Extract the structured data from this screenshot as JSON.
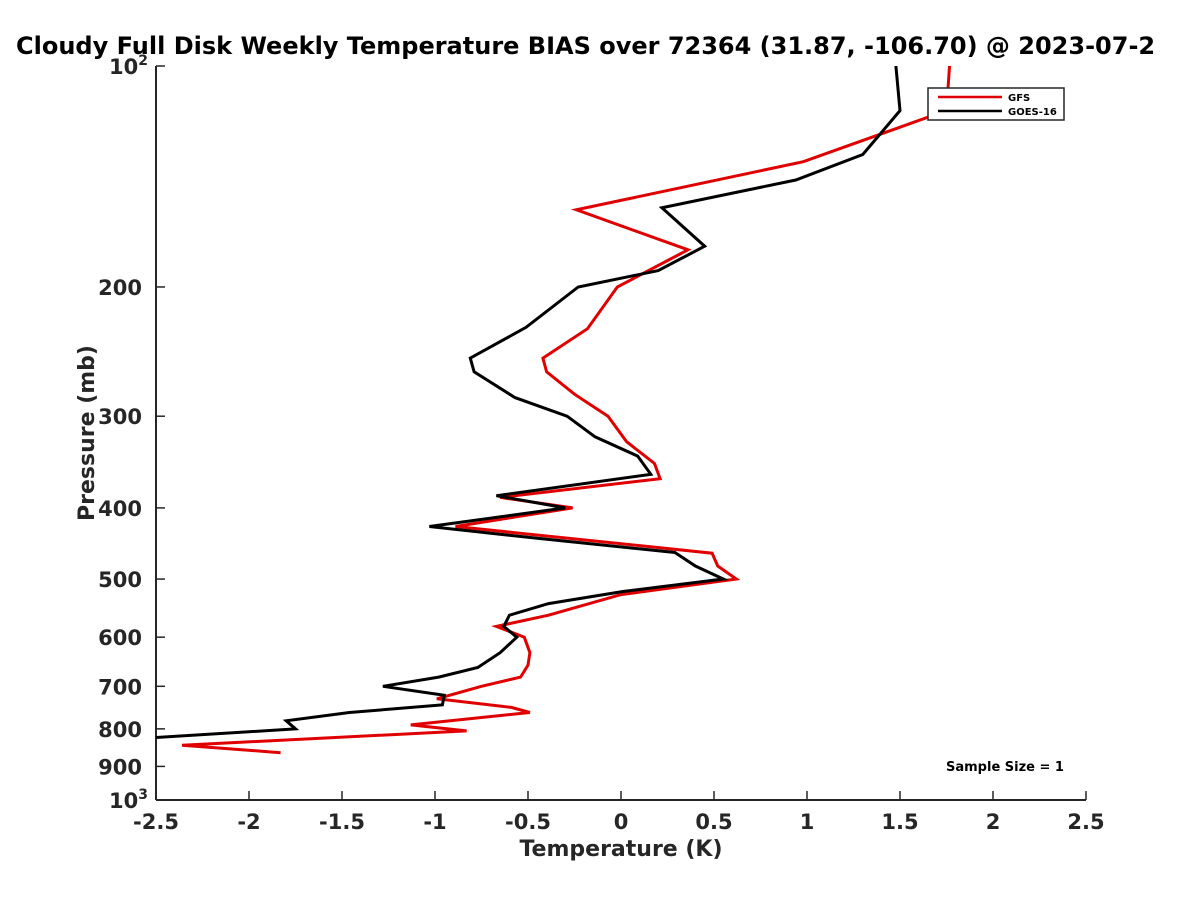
{
  "chart_data": {
    "type": "line",
    "title": "Cloudy Full Disk Weekly Temperature BIAS over 72364 (31.87, -106.70) @ 2023-07-2",
    "xlabel": "Temperature (K)",
    "ylabel": "Pressure (mb)",
    "xlim": [
      -2.5,
      2.5
    ],
    "ylim": [
      100,
      1000
    ],
    "y_scale": "log",
    "y_reversed": true,
    "grid": false,
    "legend_position": "top-right",
    "x_ticks": [
      "-2.5",
      "-2",
      "-1.5",
      "-1",
      "-0.5",
      "0",
      "0.5",
      "1",
      "1.5",
      "2",
      "2.5"
    ],
    "x_tick_values": [
      -2.5,
      -2,
      -1.5,
      -1,
      -0.5,
      0,
      0.5,
      1,
      1.5,
      2,
      2.5
    ],
    "y_ticks": [
      {
        "value": 100,
        "base": "10",
        "exp": "2"
      },
      {
        "value": 200,
        "label": "200"
      },
      {
        "value": 300,
        "label": "300"
      },
      {
        "value": 400,
        "label": "400"
      },
      {
        "value": 500,
        "label": "500"
      },
      {
        "value": 600,
        "label": "600"
      },
      {
        "value": 700,
        "label": "700"
      },
      {
        "value": 800,
        "label": "800"
      },
      {
        "value": 900,
        "label": "900"
      },
      {
        "value": 1000,
        "base": "10",
        "exp": "3"
      }
    ],
    "annotation": "Sample Size = 1",
    "series": [
      {
        "name": "GFS",
        "color": "#e00000",
        "x": [
          1.77,
          1.75,
          0.98,
          -0.24,
          0.36,
          -0.02,
          -0.18,
          -0.42,
          -0.4,
          -0.25,
          -0.07,
          0.03,
          0.18,
          0.21,
          -0.65,
          -0.26,
          -0.89,
          0.49,
          0.52,
          0.62,
          0.0,
          -0.39,
          -0.67,
          -0.52,
          -0.49,
          -0.5,
          -0.54,
          -0.75,
          -0.99,
          -0.59,
          -0.49,
          -1.13,
          -0.83,
          -2.36,
          -1.83
        ],
        "y": [
          97,
          115,
          135,
          157,
          178,
          200,
          228,
          250,
          261,
          280,
          300,
          325,
          348,
          365,
          387,
          400,
          424,
          461,
          480,
          500,
          525,
          560,
          580,
          600,
          630,
          655,
          680,
          700,
          728,
          748,
          760,
          790,
          805,
          842,
          862
        ]
      },
      {
        "name": "GOES-16",
        "color": "#000000",
        "x": [
          1.47,
          1.5,
          1.3,
          0.94,
          0.22,
          0.45,
          0.2,
          -0.23,
          -0.51,
          -0.81,
          -0.79,
          -0.57,
          -0.29,
          -0.14,
          0.09,
          0.16,
          -0.67,
          -0.3,
          -1.03,
          -0.45,
          0.29,
          0.4,
          0.55,
          0.01,
          -0.39,
          -0.6,
          -0.63,
          -0.56,
          -0.65,
          -0.77,
          -0.98,
          -1.28,
          -0.95,
          -0.96,
          -1.46,
          -1.8,
          -1.75,
          -2.5
        ],
        "y": [
          95,
          115,
          132,
          143,
          156,
          176,
          190,
          200,
          227,
          250,
          261,
          283,
          300,
          320,
          340,
          360,
          385,
          400,
          424,
          440,
          460,
          480,
          500,
          520,
          540,
          560,
          580,
          600,
          630,
          660,
          680,
          700,
          720,
          742,
          760,
          780,
          800,
          822
        ]
      }
    ]
  }
}
